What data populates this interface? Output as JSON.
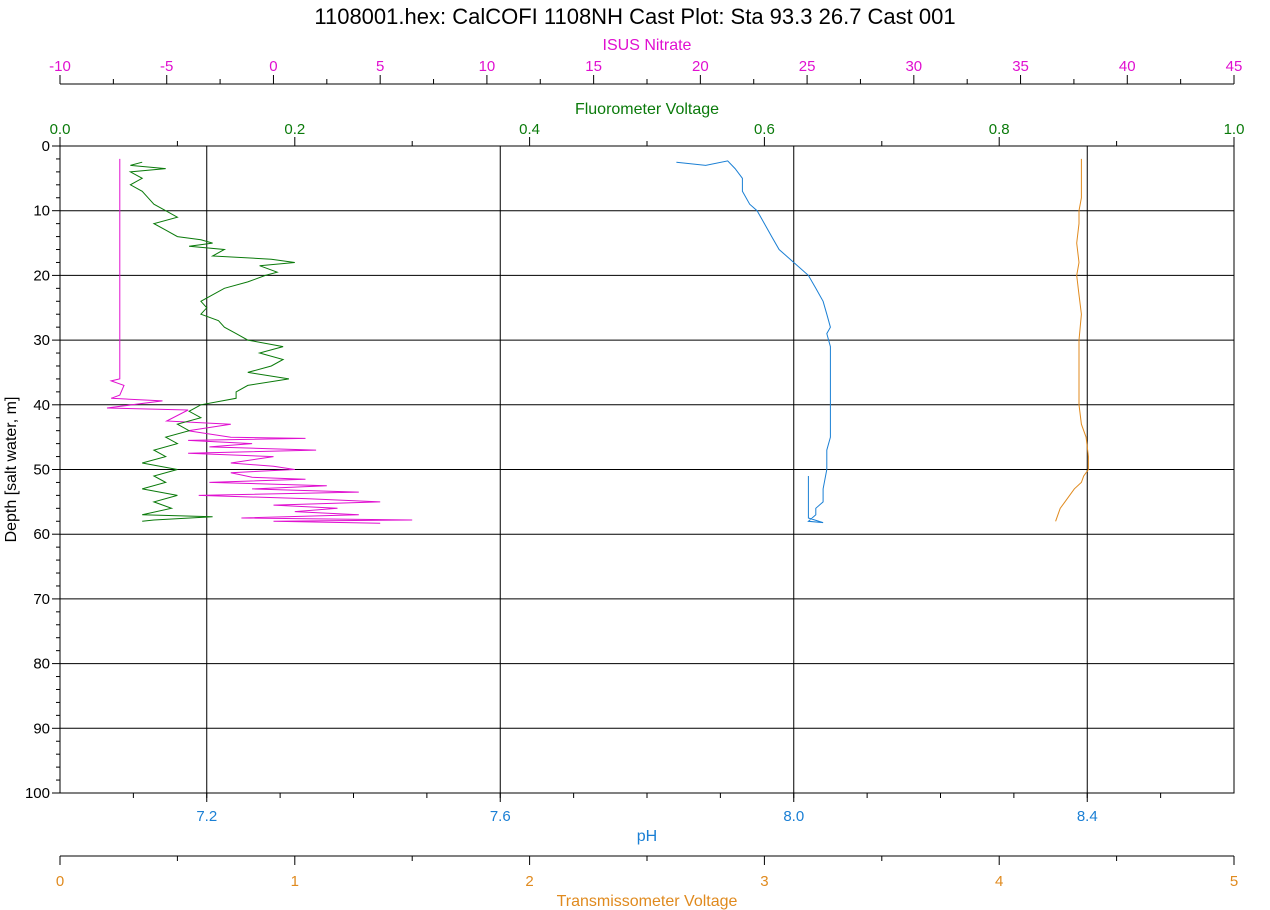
{
  "chart_data": {
    "type": "line",
    "title": "1108001.hex: CalCOFI 1108NH Cast Plot: Sta 93.3 26.7 Cast 001",
    "y_axis": {
      "label": "Depth [salt water, m]",
      "range": [
        0,
        100
      ],
      "reversed": true,
      "ticks": [
        "0",
        "10",
        "20",
        "30",
        "40",
        "50",
        "60",
        "70",
        "80",
        "90",
        "100"
      ]
    },
    "x_axes": [
      {
        "id": "nitrate",
        "label": "ISUS Nitrate",
        "position": "top-outer",
        "color": "#e010d0",
        "range": [
          -10,
          45
        ],
        "ticks": [
          "-10",
          "-5",
          "0",
          "5",
          "10",
          "15",
          "20",
          "25",
          "30",
          "35",
          "40",
          "45"
        ]
      },
      {
        "id": "fluor",
        "label": "Fluorometer Voltage",
        "position": "top-inner",
        "color": "#0a7a0a",
        "range": [
          0.0,
          1.0
        ],
        "ticks": [
          "0.0",
          "0.2",
          "0.4",
          "0.6",
          "0.8",
          "1.0"
        ]
      },
      {
        "id": "ph",
        "label": "pH",
        "position": "bottom-inner",
        "color": "#1a7fd4",
        "range": [
          7.0,
          8.6
        ],
        "ticks": [
          "7.2",
          "7.6",
          "8.0",
          "8.4"
        ]
      },
      {
        "id": "trans",
        "label": "Transmissometer Voltage",
        "position": "bottom-outer",
        "color": "#e08a1e",
        "range": [
          0,
          5
        ],
        "ticks": [
          "0",
          "1",
          "2",
          "3",
          "4",
          "5"
        ]
      }
    ],
    "grid": true,
    "series": [
      {
        "axis": "nitrate",
        "color": "#e010d0",
        "points": [
          [
            -7.2,
            2
          ],
          [
            -7.2,
            10
          ],
          [
            -7.2,
            20
          ],
          [
            -7.2,
            30
          ],
          [
            -7.2,
            36
          ],
          [
            -7.6,
            36.3
          ],
          [
            -7.0,
            37
          ],
          [
            -7.2,
            38.5
          ],
          [
            -7.6,
            39
          ],
          [
            -5.2,
            39.4
          ],
          [
            -7.8,
            40.5
          ],
          [
            -4,
            40.8
          ],
          [
            -5,
            42.5
          ],
          [
            -2,
            43
          ],
          [
            -4,
            44
          ],
          [
            -2,
            45
          ],
          [
            1.5,
            45.2
          ],
          [
            -4,
            45.5
          ],
          [
            -1,
            46
          ],
          [
            -3,
            46.5
          ],
          [
            2,
            47
          ],
          [
            -4,
            47.5
          ],
          [
            0,
            48
          ],
          [
            -2,
            49
          ],
          [
            0,
            49.5
          ],
          [
            1,
            50
          ],
          [
            -2,
            50.5
          ],
          [
            -1,
            51.2
          ],
          [
            1.5,
            51.5
          ],
          [
            -3,
            52
          ],
          [
            2.5,
            52.5
          ],
          [
            -1,
            53
          ],
          [
            4,
            53.5
          ],
          [
            -3.5,
            54
          ],
          [
            1.5,
            54.5
          ],
          [
            5,
            55
          ],
          [
            0,
            55.5
          ],
          [
            3,
            56
          ],
          [
            1,
            56.5
          ],
          [
            4,
            57
          ],
          [
            -1.5,
            57.5
          ],
          [
            6.5,
            57.8
          ],
          [
            0,
            58
          ],
          [
            5,
            58.3
          ]
        ]
      },
      {
        "axis": "fluor",
        "color": "#0a7a0a",
        "points": [
          [
            0.07,
            2.5
          ],
          [
            0.06,
            3
          ],
          [
            0.09,
            3.5
          ],
          [
            0.06,
            4
          ],
          [
            0.07,
            5
          ],
          [
            0.06,
            6
          ],
          [
            0.07,
            7
          ],
          [
            0.075,
            8
          ],
          [
            0.08,
            9
          ],
          [
            0.09,
            10
          ],
          [
            0.095,
            10.5
          ],
          [
            0.1,
            11
          ],
          [
            0.08,
            12
          ],
          [
            0.09,
            13
          ],
          [
            0.1,
            14
          ],
          [
            0.12,
            14.5
          ],
          [
            0.13,
            15
          ],
          [
            0.11,
            15.5
          ],
          [
            0.14,
            16
          ],
          [
            0.13,
            17
          ],
          [
            0.18,
            17.5
          ],
          [
            0.2,
            18
          ],
          [
            0.17,
            18.5
          ],
          [
            0.185,
            19.5
          ],
          [
            0.175,
            20
          ],
          [
            0.16,
            21
          ],
          [
            0.14,
            22
          ],
          [
            0.13,
            23
          ],
          [
            0.12,
            24
          ],
          [
            0.125,
            25
          ],
          [
            0.12,
            26
          ],
          [
            0.135,
            27
          ],
          [
            0.14,
            28
          ],
          [
            0.15,
            29
          ],
          [
            0.16,
            30
          ],
          [
            0.19,
            31
          ],
          [
            0.17,
            32
          ],
          [
            0.19,
            33
          ],
          [
            0.18,
            34
          ],
          [
            0.16,
            35
          ],
          [
            0.195,
            36
          ],
          [
            0.16,
            37
          ],
          [
            0.15,
            38
          ],
          [
            0.15,
            39
          ],
          [
            0.12,
            40
          ],
          [
            0.11,
            41
          ],
          [
            0.12,
            42
          ],
          [
            0.1,
            43
          ],
          [
            0.11,
            44
          ],
          [
            0.09,
            45
          ],
          [
            0.1,
            46
          ],
          [
            0.08,
            47
          ],
          [
            0.09,
            48
          ],
          [
            0.07,
            49
          ],
          [
            0.1,
            50
          ],
          [
            0.08,
            51
          ],
          [
            0.09,
            52
          ],
          [
            0.07,
            53
          ],
          [
            0.1,
            54
          ],
          [
            0.08,
            55
          ],
          [
            0.095,
            56
          ],
          [
            0.07,
            57
          ],
          [
            0.13,
            57.3
          ],
          [
            0.08,
            57.8
          ],
          [
            0.07,
            58
          ]
        ]
      },
      {
        "axis": "ph",
        "color": "#1a7fd4",
        "points": [
          [
            7.84,
            2.5
          ],
          [
            7.88,
            3
          ],
          [
            7.91,
            2.3
          ],
          [
            7.92,
            3.5
          ],
          [
            7.93,
            5
          ],
          [
            7.93,
            7
          ],
          [
            7.94,
            9
          ],
          [
            7.95,
            10
          ],
          [
            7.96,
            12
          ],
          [
            7.97,
            14
          ],
          [
            7.98,
            16
          ],
          [
            8.0,
            18
          ],
          [
            8.02,
            20
          ],
          [
            8.03,
            22
          ],
          [
            8.04,
            24
          ],
          [
            8.045,
            26
          ],
          [
            8.05,
            28
          ],
          [
            8.045,
            29
          ],
          [
            8.05,
            31
          ],
          [
            8.05,
            35
          ],
          [
            8.05,
            40
          ],
          [
            8.05,
            45
          ],
          [
            8.045,
            47
          ],
          [
            8.045,
            50
          ],
          [
            8.04,
            53
          ],
          [
            8.04,
            55
          ],
          [
            8.03,
            56
          ],
          [
            8.03,
            57
          ],
          [
            8.02,
            58
          ],
          [
            8.04,
            58.2
          ],
          [
            8.02,
            57.5
          ],
          [
            8.02,
            51
          ]
        ]
      },
      {
        "axis": "trans",
        "color": "#e08a1e",
        "points": [
          [
            4.35,
            2
          ],
          [
            4.35,
            5
          ],
          [
            4.35,
            8
          ],
          [
            4.34,
            10
          ],
          [
            4.34,
            12
          ],
          [
            4.33,
            15
          ],
          [
            4.34,
            18
          ],
          [
            4.33,
            20
          ],
          [
            4.34,
            23
          ],
          [
            4.35,
            26
          ],
          [
            4.34,
            30
          ],
          [
            4.34,
            35
          ],
          [
            4.34,
            40
          ],
          [
            4.35,
            43
          ],
          [
            4.37,
            45
          ],
          [
            4.38,
            48
          ],
          [
            4.38,
            50
          ],
          [
            4.36,
            51
          ],
          [
            4.35,
            52
          ],
          [
            4.32,
            53
          ],
          [
            4.3,
            54
          ],
          [
            4.28,
            55
          ],
          [
            4.26,
            56
          ],
          [
            4.25,
            57
          ],
          [
            4.24,
            58
          ]
        ]
      }
    ]
  }
}
